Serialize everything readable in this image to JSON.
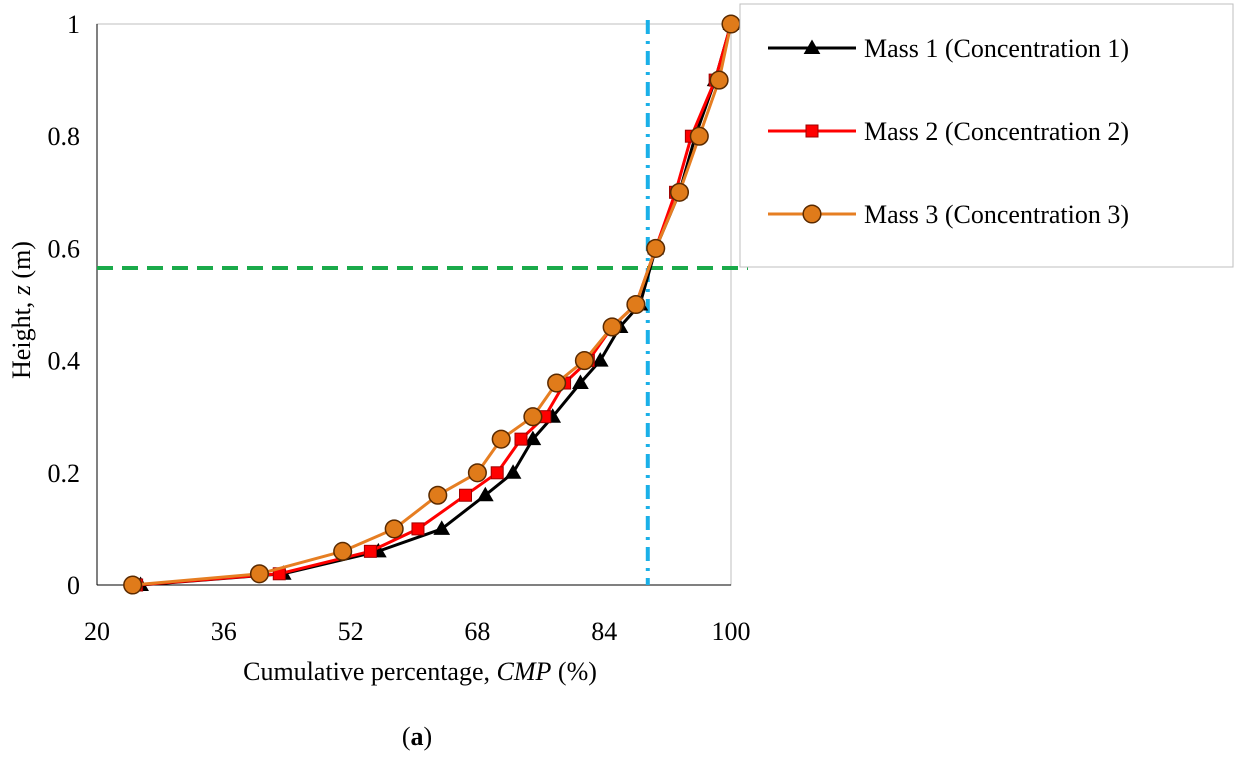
{
  "chart_data": {
    "type": "line",
    "title": "",
    "xlabel": "Cumulative percentage, ",
    "xlabel_italic": "CMP",
    "xlabel_suffix": " (%)",
    "ylabel": "Height, ",
    "ylabel_italic": "z",
    "ylabel_suffix": " (m)",
    "xlim": [
      20,
      100
    ],
    "ylim": [
      0,
      1
    ],
    "xticks": [
      20,
      36,
      52,
      68,
      84,
      100
    ],
    "yticks": [
      0,
      0.2,
      0.4,
      0.6,
      0.8,
      1
    ],
    "ytick_labels": [
      "0",
      "0.2",
      "0.4",
      "0.6",
      "0.8",
      "1"
    ],
    "caption_open": "(",
    "caption_bold": "a",
    "caption_close": ")",
    "reference_lines": [
      {
        "orientation": "horizontal",
        "value": 0.565,
        "style": "dashed",
        "color": "#1aaa4a"
      },
      {
        "orientation": "vertical",
        "value": 89.5,
        "style": "dash-dot",
        "color": "#1ab0e8"
      }
    ],
    "series": [
      {
        "name": "Mass 1 (Concentration 1)",
        "marker": "triangle",
        "line_color": "#000000",
        "marker_fill": "#000000",
        "marker_stroke": "#000000",
        "x": [
          25.5,
          43.5,
          55.5,
          63.5,
          69.0,
          72.5,
          75.0,
          77.5,
          81.0,
          83.5,
          86.0,
          88.5,
          90.5,
          93.5,
          95.5,
          98.0,
          100.0
        ],
        "y": [
          0,
          0.02,
          0.06,
          0.1,
          0.16,
          0.2,
          0.26,
          0.3,
          0.36,
          0.4,
          0.46,
          0.5,
          0.6,
          0.7,
          0.8,
          0.9,
          1.0
        ]
      },
      {
        "name": "Mass 2 (Concentration 2)",
        "marker": "square",
        "line_color": "#ff0000",
        "marker_fill": "#ff0000",
        "marker_stroke": "#a00000",
        "x": [
          25.0,
          43.0,
          54.5,
          60.5,
          66.5,
          70.5,
          73.5,
          76.5,
          79.0,
          82.0,
          85.0,
          88.0,
          90.5,
          93.0,
          95.0,
          98.0,
          100.0
        ],
        "y": [
          0,
          0.02,
          0.06,
          0.1,
          0.16,
          0.2,
          0.26,
          0.3,
          0.36,
          0.4,
          0.46,
          0.5,
          0.6,
          0.7,
          0.8,
          0.9,
          1.0
        ]
      },
      {
        "name": "Mass 3 (Concentration 3)",
        "marker": "circle",
        "line_color": "#e67e22",
        "marker_fill": "#e07b1a",
        "marker_stroke": "#5a2a00",
        "x": [
          24.5,
          40.5,
          51.0,
          57.5,
          63.0,
          68.0,
          71.0,
          75.0,
          78.0,
          81.5,
          85.0,
          88.0,
          90.5,
          93.5,
          96.0,
          98.5,
          100.0
        ],
        "y": [
          0,
          0.02,
          0.06,
          0.1,
          0.16,
          0.2,
          0.26,
          0.3,
          0.36,
          0.4,
          0.46,
          0.5,
          0.6,
          0.7,
          0.8,
          0.9,
          1.0
        ]
      }
    ]
  }
}
